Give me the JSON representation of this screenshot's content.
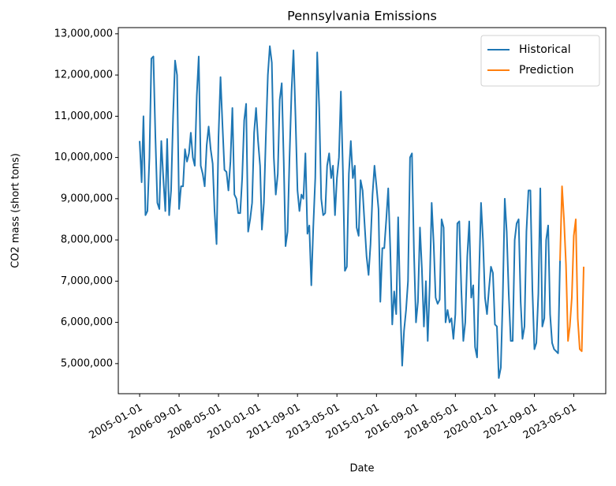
{
  "chart_data": {
    "type": "line",
    "title": "Pennsylvania Emissions",
    "x_label": "Date",
    "y_label": "CO2 mass (short tons)",
    "xlim": [
      "2004-02-07",
      "2024-09-05"
    ],
    "xticks": [
      "2005-01-01",
      "2006-09-01",
      "2008-05-01",
      "2010-01-01",
      "2011-09-01",
      "2013-05-01",
      "2015-01-01",
      "2016-09-01",
      "2018-05-01",
      "2020-01-01",
      "2021-09-01",
      "2023-05-01"
    ],
    "ylim": [
      4270000,
      13150000
    ],
    "yticks": [
      {
        "value": 5000000,
        "label": "5,000,000"
      },
      {
        "value": 6000000,
        "label": "6,000,000"
      },
      {
        "value": 7000000,
        "label": "7,000,000"
      },
      {
        "value": 8000000,
        "label": "8,000,000"
      },
      {
        "value": 9000000,
        "label": "9,000,000"
      },
      {
        "value": 10000000,
        "label": "10,000,000"
      },
      {
        "value": 11000000,
        "label": "11,000,000"
      },
      {
        "value": 12000000,
        "label": "12,000,000"
      },
      {
        "value": 13000000,
        "label": "13,000,000"
      }
    ],
    "legend": "upper right",
    "series": [
      {
        "name": "Historical",
        "color": "#1f77b4",
        "x": [
          "2005-01-01",
          "2005-02-01",
          "2005-03-01",
          "2005-04-01",
          "2005-05-01",
          "2005-06-01",
          "2005-07-01",
          "2005-08-01",
          "2005-09-01",
          "2005-10-01",
          "2005-11-01",
          "2005-12-01",
          "2006-01-01",
          "2006-02-01",
          "2006-03-01",
          "2006-04-01",
          "2006-05-01",
          "2006-06-01",
          "2006-07-01",
          "2006-08-01",
          "2006-09-01",
          "2006-10-01",
          "2006-11-01",
          "2006-12-01",
          "2007-01-01",
          "2007-02-01",
          "2007-03-01",
          "2007-04-01",
          "2007-05-01",
          "2007-06-01",
          "2007-07-01",
          "2007-08-01",
          "2007-09-01",
          "2007-10-01",
          "2007-11-01",
          "2007-12-01",
          "2008-01-01",
          "2008-02-01",
          "2008-03-01",
          "2008-04-01",
          "2008-05-01",
          "2008-06-01",
          "2008-07-01",
          "2008-08-01",
          "2008-09-01",
          "2008-10-01",
          "2008-11-01",
          "2008-12-01",
          "2009-01-01",
          "2009-02-01",
          "2009-03-01",
          "2009-04-01",
          "2009-05-01",
          "2009-06-01",
          "2009-07-01",
          "2009-08-01",
          "2009-09-01",
          "2009-10-01",
          "2009-11-01",
          "2009-12-01",
          "2010-01-01",
          "2010-02-01",
          "2010-03-01",
          "2010-04-01",
          "2010-05-01",
          "2010-06-01",
          "2010-07-01",
          "2010-08-01",
          "2010-09-01",
          "2010-10-01",
          "2010-11-01",
          "2010-12-01",
          "2011-01-01",
          "2011-02-01",
          "2011-03-01",
          "2011-04-01",
          "2011-05-01",
          "2011-06-01",
          "2011-07-01",
          "2011-08-01",
          "2011-09-01",
          "2011-10-01",
          "2011-11-01",
          "2011-12-01",
          "2012-01-01",
          "2012-02-01",
          "2012-03-01",
          "2012-04-01",
          "2012-05-01",
          "2012-06-01",
          "2012-07-01",
          "2012-08-01",
          "2012-09-01",
          "2012-10-01",
          "2012-11-01",
          "2012-12-01",
          "2013-01-01",
          "2013-02-01",
          "2013-03-01",
          "2013-04-01",
          "2013-05-01",
          "2013-06-01",
          "2013-07-01",
          "2013-08-01",
          "2013-09-01",
          "2013-10-01",
          "2013-11-01",
          "2013-12-01",
          "2014-01-01",
          "2014-02-01",
          "2014-03-01",
          "2014-04-01",
          "2014-05-01",
          "2014-06-01",
          "2014-07-01",
          "2014-08-01",
          "2014-09-01",
          "2014-10-01",
          "2014-11-01",
          "2014-12-01",
          "2015-01-01",
          "2015-02-01",
          "2015-03-01",
          "2015-04-01",
          "2015-05-01",
          "2015-06-01",
          "2015-07-01",
          "2015-08-01",
          "2015-09-01",
          "2015-10-01",
          "2015-11-01",
          "2015-12-01",
          "2016-01-01",
          "2016-02-01",
          "2016-03-01",
          "2016-04-01",
          "2016-05-01",
          "2016-06-01",
          "2016-07-01",
          "2016-08-01",
          "2016-09-01",
          "2016-10-01",
          "2016-11-01",
          "2016-12-01",
          "2017-01-01",
          "2017-02-01",
          "2017-03-01",
          "2017-04-01",
          "2017-05-01",
          "2017-06-01",
          "2017-07-01",
          "2017-08-01",
          "2017-09-01",
          "2017-10-01",
          "2017-11-01",
          "2017-12-01",
          "2018-01-01",
          "2018-02-01",
          "2018-03-01",
          "2018-04-01",
          "2018-05-01",
          "2018-06-01",
          "2018-07-01",
          "2018-08-01",
          "2018-09-01",
          "2018-10-01",
          "2018-11-01",
          "2018-12-01",
          "2019-01-01",
          "2019-02-01",
          "2019-03-01",
          "2019-04-01",
          "2019-05-01",
          "2019-06-01",
          "2019-07-01",
          "2019-08-01",
          "2019-09-01",
          "2019-10-01",
          "2019-11-01",
          "2019-12-01",
          "2020-01-01",
          "2020-02-01",
          "2020-03-01",
          "2020-04-01",
          "2020-05-01",
          "2020-06-01",
          "2020-07-01",
          "2020-08-01",
          "2020-09-01",
          "2020-10-01",
          "2020-11-01",
          "2020-12-01",
          "2021-01-01",
          "2021-02-01",
          "2021-03-01",
          "2021-04-01",
          "2021-05-01",
          "2021-06-01",
          "2021-07-01",
          "2021-08-01",
          "2021-09-01",
          "2021-10-01",
          "2021-11-01",
          "2021-12-01",
          "2022-01-01",
          "2022-02-01",
          "2022-03-01",
          "2022-04-01",
          "2022-05-01",
          "2022-06-01",
          "2022-07-01",
          "2022-08-01",
          "2022-09-01",
          "2022-10-01"
        ],
        "values": [
          10400000,
          9400000,
          11000000,
          8600000,
          8700000,
          10000000,
          12400000,
          12450000,
          10500000,
          8900000,
          8750000,
          10400000,
          9500000,
          8700000,
          10450000,
          8600000,
          9200000,
          11000000,
          12350000,
          12000000,
          8750000,
          9300000,
          9300000,
          10200000,
          9900000,
          10100000,
          10600000,
          10000000,
          9800000,
          11500000,
          12450000,
          9800000,
          9600000,
          9300000,
          10300000,
          10750000,
          10200000,
          9850000,
          8700000,
          7900000,
          10500000,
          11950000,
          10800000,
          9700000,
          9650000,
          9200000,
          9900000,
          11200000,
          9100000,
          9000000,
          8650000,
          8650000,
          9500000,
          10900000,
          11300000,
          8200000,
          8500000,
          8900000,
          10600000,
          11200000,
          10400000,
          9800000,
          8250000,
          8900000,
          10500000,
          12000000,
          12700000,
          12300000,
          10000000,
          9100000,
          9600000,
          11400000,
          11800000,
          9900000,
          7850000,
          8200000,
          10000000,
          11600000,
          12600000,
          11000000,
          9200000,
          8700000,
          9100000,
          9000000,
          10100000,
          8150000,
          8350000,
          6900000,
          8300000,
          9500000,
          12550000,
          11200000,
          9000000,
          8600000,
          8650000,
          9800000,
          10100000,
          9500000,
          9800000,
          8600000,
          9500000,
          10000000,
          11600000,
          9700000,
          7250000,
          7350000,
          9600000,
          10400000,
          9500000,
          9800000,
          8300000,
          8100000,
          9450000,
          9200000,
          8400000,
          7600000,
          7150000,
          7900000,
          9100000,
          9800000,
          9300000,
          8750000,
          6500000,
          7800000,
          7800000,
          8500000,
          9250000,
          7800000,
          5950000,
          6750000,
          6200000,
          8550000,
          6500000,
          4950000,
          5800000,
          6300000,
          7000000,
          10000000,
          10100000,
          7700000,
          6000000,
          6500000,
          8300000,
          7300000,
          5900000,
          7000000,
          5550000,
          6900000,
          8900000,
          7900000,
          6600000,
          6450000,
          6550000,
          8500000,
          8300000,
          6000000,
          6300000,
          6000000,
          6100000,
          5600000,
          6200000,
          8400000,
          8450000,
          6800000,
          5550000,
          6000000,
          7600000,
          8450000,
          6600000,
          6900000,
          5400000,
          5150000,
          7100000,
          8900000,
          8000000,
          6600000,
          6200000,
          6800000,
          7350000,
          7200000,
          5950000,
          5900000,
          4650000,
          4900000,
          6600000,
          9000000,
          8200000,
          6700000,
          5550000,
          5550000,
          8000000,
          8400000,
          8500000,
          6500000,
          5600000,
          5900000,
          8200000,
          9200000,
          9200000,
          6800000,
          5350000,
          5500000,
          6700000,
          9250000,
          5900000,
          6100000,
          8000000,
          8350000,
          6200000,
          5500000,
          5350000,
          5300000,
          5250000,
          7500000
        ]
      },
      {
        "name": "Prediction",
        "color": "#ff7f0e",
        "x": [
          "2022-10-01",
          "2022-11-01",
          "2022-12-01",
          "2023-01-01",
          "2023-02-01",
          "2023-03-01",
          "2023-04-01",
          "2023-05-01",
          "2023-06-01",
          "2023-07-01",
          "2023-08-01",
          "2023-09-01",
          "2023-10-01"
        ],
        "values": [
          7500000,
          9300000,
          8500000,
          7400000,
          5550000,
          5900000,
          6600000,
          8100000,
          8500000,
          6100000,
          5350000,
          5300000,
          7350000
        ]
      }
    ]
  }
}
